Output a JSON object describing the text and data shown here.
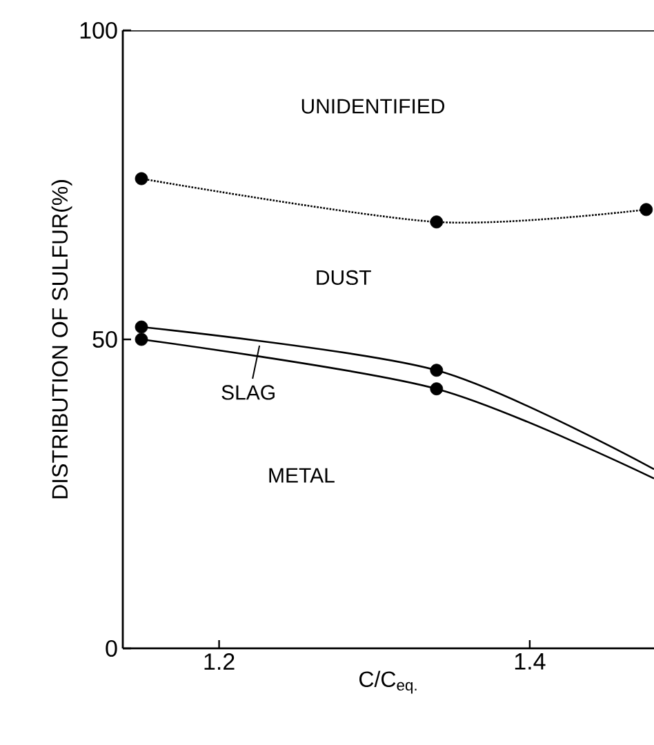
{
  "chart_data": {
    "type": "line",
    "xlabel": "C/C$_{eq.}$",
    "ylabel": "DISTRIBUTION OF SULFUR(%)",
    "xlim": [
      1.138,
      1.48
    ],
    "ylim": [
      0,
      100
    ],
    "xticks": [
      1.2,
      1.4
    ],
    "yticks": [
      0,
      50,
      100
    ],
    "grid": false,
    "annotations": [
      "UNIDENTIFIED",
      "DUST",
      {
        "text": "SLAG",
        "x": 1.226,
        "y": 49
      },
      "METAL"
    ],
    "series": [
      {
        "line_style": "dotted",
        "color": "#000000",
        "x": [
          1.15,
          1.34,
          1.475
        ],
        "values": [
          76,
          69,
          71
        ]
      },
      {
        "line_style": "solid",
        "color": "#000000",
        "x": [
          1.15,
          1.34,
          1.48
        ],
        "values": [
          52,
          45,
          29
        ]
      },
      {
        "line_style": "solid",
        "color": "#000000",
        "x": [
          1.15,
          1.34,
          1.48
        ],
        "values": [
          50,
          42,
          27.5
        ]
      },
      {
        "type": "scatter",
        "color": "#000000",
        "x": [
          1.15,
          1.34,
          1.475,
          1.15,
          1.34,
          1.15,
          1.34
        ],
        "values": [
          76,
          69,
          71,
          52,
          45,
          50,
          42
        ]
      }
    ]
  }
}
